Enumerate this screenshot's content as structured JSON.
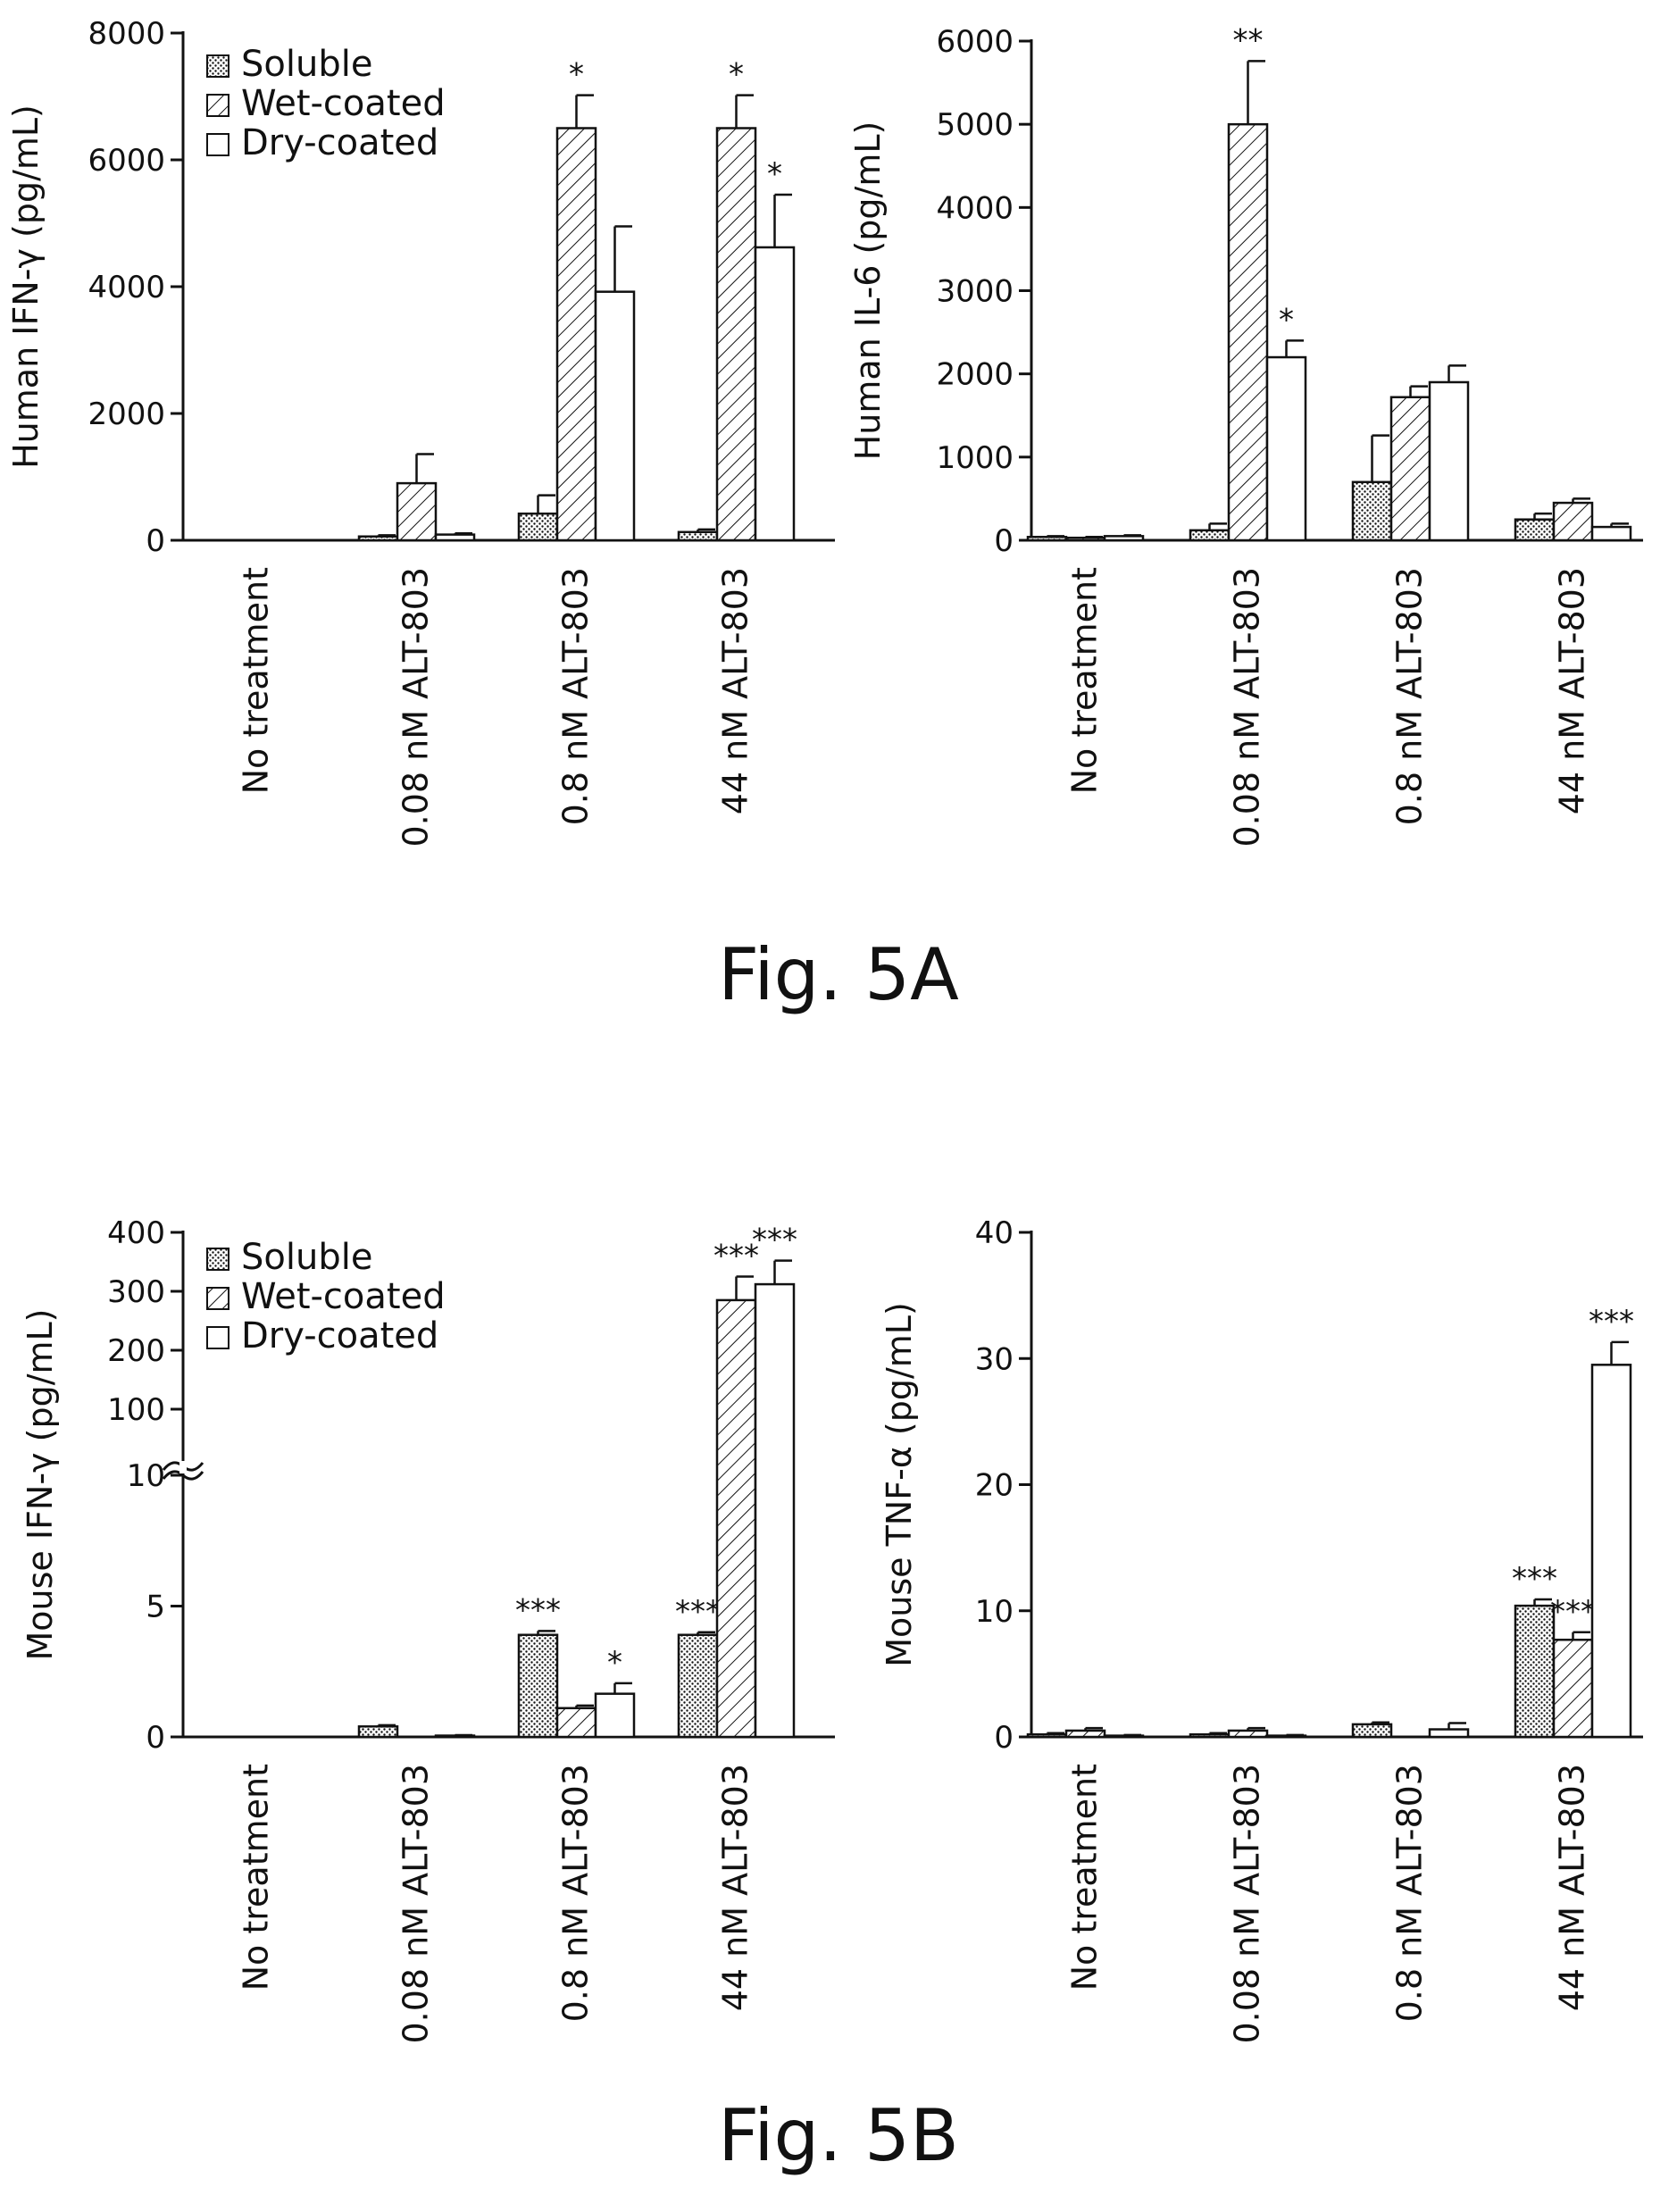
{
  "figures": [
    {
      "caption": "Fig. 5A"
    },
    {
      "caption": "Fig. 5B"
    }
  ],
  "chart_data": [
    {
      "type": "bar",
      "ylabel": "Human IFN-γ (pg/mL)",
      "ylim": [
        0,
        8000
      ],
      "yticks": [
        0,
        2000,
        4000,
        6000,
        8000
      ],
      "yscale": "linear",
      "categories": [
        "No treatment",
        "0.08 nM ALT-803",
        "0.8 nM ALT-803",
        "44 nM ALT-803"
      ],
      "legend": {
        "entries": [
          "Soluble",
          "Wet-coated",
          "Dry-coated"
        ],
        "position": "top-left"
      },
      "series": [
        {
          "name": "Soluble",
          "values": [
            0,
            60,
            420,
            130
          ],
          "errors": [
            0,
            20,
            290,
            40
          ],
          "sig": [
            "",
            "",
            "",
            ""
          ]
        },
        {
          "name": "Wet-coated",
          "values": [
            0,
            900,
            6500,
            6500
          ],
          "errors": [
            0,
            460,
            520,
            520
          ],
          "sig": [
            "",
            "",
            "*",
            "*"
          ]
        },
        {
          "name": "Dry-coated",
          "values": [
            0,
            90,
            3920,
            4620
          ],
          "errors": [
            0,
            20,
            1030,
            830
          ],
          "sig": [
            "",
            "",
            "",
            "*"
          ]
        }
      ]
    },
    {
      "type": "bar",
      "ylabel": "Human IL-6 (pg/mL)",
      "ylim": [
        0,
        6000
      ],
      "yticks": [
        0,
        1000,
        2000,
        3000,
        4000,
        5000,
        6000
      ],
      "yscale": "linear",
      "categories": [
        "No treatment",
        "0.08 nM ALT-803",
        "0.8 nM ALT-803",
        "44 nM ALT-803"
      ],
      "series": [
        {
          "name": "Soluble",
          "values": [
            40,
            120,
            700,
            250
          ],
          "errors": [
            10,
            80,
            560,
            70
          ],
          "sig": [
            "",
            "",
            "",
            ""
          ]
        },
        {
          "name": "Wet-coated",
          "values": [
            30,
            5000,
            1720,
            450
          ],
          "errors": [
            10,
            760,
            130,
            50
          ],
          "sig": [
            "",
            "**",
            "",
            ""
          ]
        },
        {
          "name": "Dry-coated",
          "values": [
            50,
            2200,
            1900,
            160
          ],
          "errors": [
            10,
            200,
            200,
            40
          ],
          "sig": [
            "",
            "*",
            "",
            ""
          ]
        }
      ]
    },
    {
      "type": "bar",
      "ylabel": "Mouse IFN-γ (pg/mL)",
      "yscale": "broken",
      "yticks": [
        0,
        5,
        10,
        100,
        200,
        300,
        400
      ],
      "axis_break": [
        10,
        100
      ],
      "categories": [
        "No treatment",
        "0.08 nM ALT-803",
        "0.8 nM ALT-803",
        "44 nM ALT-803"
      ],
      "legend": {
        "entries": [
          "Soluble",
          "Wet-coated",
          "Dry-coated"
        ],
        "position": "top-left"
      },
      "series": [
        {
          "name": "Soluble",
          "values": [
            0,
            0.4,
            3.9,
            3.9
          ],
          "errors": [
            0,
            0.05,
            0.15,
            0.1
          ],
          "sig": [
            "",
            "",
            "***",
            "***"
          ]
        },
        {
          "name": "Wet-coated",
          "values": [
            0,
            0,
            1.1,
            285
          ],
          "errors": [
            0,
            0,
            0.1,
            40
          ],
          "sig": [
            "",
            "",
            "",
            "***"
          ]
        },
        {
          "name": "Dry-coated",
          "values": [
            0,
            0.05,
            1.65,
            312
          ],
          "errors": [
            0,
            0.02,
            0.4,
            40
          ],
          "sig": [
            "",
            "",
            "*",
            "***"
          ]
        }
      ]
    },
    {
      "type": "bar",
      "ylabel": "Mouse TNF-α (pg/mL)",
      "ylim": [
        0,
        40
      ],
      "yticks": [
        0,
        10,
        20,
        30,
        40
      ],
      "yscale": "linear",
      "categories": [
        "No treatment",
        "0.08 nM ALT-803",
        "0.8 nM ALT-803",
        "44 nM ALT-803"
      ],
      "series": [
        {
          "name": "Soluble",
          "values": [
            0.2,
            0.2,
            1.0,
            10.4
          ],
          "errors": [
            0.1,
            0.1,
            0.15,
            0.5
          ],
          "sig": [
            "",
            "",
            "",
            "***"
          ]
        },
        {
          "name": "Wet-coated",
          "values": [
            0.5,
            0.5,
            0,
            7.7
          ],
          "errors": [
            0.2,
            0.2,
            0,
            0.6
          ],
          "sig": [
            "",
            "",
            "",
            "***"
          ]
        },
        {
          "name": "Dry-coated",
          "values": [
            0.1,
            0.1,
            0.6,
            29.5
          ],
          "errors": [
            0.05,
            0.05,
            0.5,
            1.8
          ],
          "sig": [
            "",
            "",
            "",
            "***"
          ]
        }
      ]
    }
  ]
}
